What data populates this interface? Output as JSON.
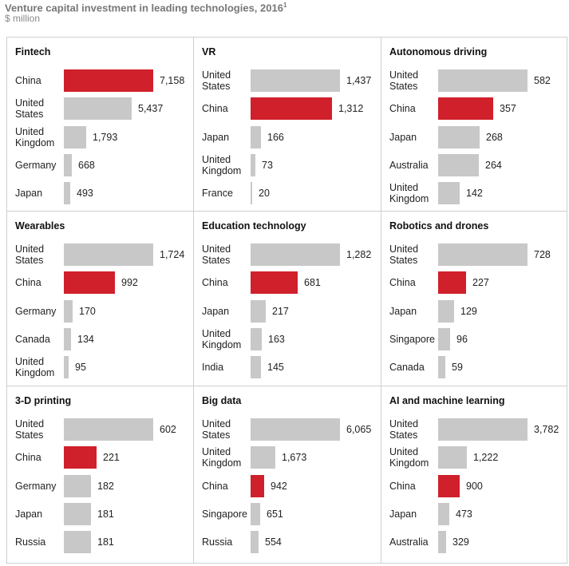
{
  "title": "Venture capital investment in leading technologies, 2016",
  "footnote_mark": "1",
  "unit_label": "$ million",
  "colors": {
    "highlight": "#d0202b",
    "bar": "#c8c8c8"
  },
  "chart_data": [
    {
      "type": "bar",
      "title": "Fintech",
      "max": 7158,
      "categories": [
        "China",
        "United States",
        "United Kingdom",
        "Germany",
        "Japan"
      ],
      "labels": [
        [
          "China"
        ],
        [
          "United",
          "States"
        ],
        [
          "United",
          "Kingdom"
        ],
        [
          "Germany"
        ],
        [
          "Japan"
        ]
      ],
      "values": [
        7158,
        5437,
        1793,
        668,
        493
      ],
      "value_labels": [
        "7,158",
        "5,437",
        "1,793",
        "668",
        "493"
      ]
    },
    {
      "type": "bar",
      "title": "VR",
      "max": 1437,
      "categories": [
        "United States",
        "China",
        "Japan",
        "United Kingdom",
        "France"
      ],
      "labels": [
        [
          "United",
          "States"
        ],
        [
          "China"
        ],
        [
          "Japan"
        ],
        [
          "United",
          "Kingdom"
        ],
        [
          "France"
        ]
      ],
      "values": [
        1437,
        1312,
        166,
        73,
        20
      ],
      "value_labels": [
        "1,437",
        "1,312",
        "166",
        "73",
        "20"
      ]
    },
    {
      "type": "bar",
      "title": "Autonomous driving",
      "max": 582,
      "categories": [
        "United States",
        "China",
        "Japan",
        "Australia",
        "United Kingdom"
      ],
      "labels": [
        [
          "United",
          "States"
        ],
        [
          "China"
        ],
        [
          "Japan"
        ],
        [
          "Australia"
        ],
        [
          "United",
          "Kingdom"
        ]
      ],
      "values": [
        582,
        357,
        268,
        264,
        142
      ],
      "value_labels": [
        "582",
        "357",
        "268",
        "264",
        "142"
      ]
    },
    {
      "type": "bar",
      "title": "Wearables",
      "max": 1724,
      "categories": [
        "United States",
        "China",
        "Germany",
        "Canada",
        "United Kingdom"
      ],
      "labels": [
        [
          "United",
          "States"
        ],
        [
          "China"
        ],
        [
          "Germany"
        ],
        [
          "Canada"
        ],
        [
          "United",
          "Kingdom"
        ]
      ],
      "values": [
        1724,
        992,
        170,
        134,
        95
      ],
      "value_labels": [
        "1,724",
        "992",
        "170",
        "134",
        "95"
      ]
    },
    {
      "type": "bar",
      "title": "Education technology",
      "max": 1282,
      "categories": [
        "United States",
        "China",
        "Japan",
        "United Kingdom",
        "India"
      ],
      "labels": [
        [
          "United",
          "States"
        ],
        [
          "China"
        ],
        [
          "Japan"
        ],
        [
          "United",
          "Kingdom"
        ],
        [
          "India"
        ]
      ],
      "values": [
        1282,
        681,
        217,
        163,
        145
      ],
      "value_labels": [
        "1,282",
        "681",
        "217",
        "163",
        "145"
      ]
    },
    {
      "type": "bar",
      "title": "Robotics and drones",
      "max": 728,
      "categories": [
        "United States",
        "China",
        "Japan",
        "Singapore",
        "Canada"
      ],
      "labels": [
        [
          "United",
          "States"
        ],
        [
          "China"
        ],
        [
          "Japan"
        ],
        [
          "Singapore"
        ],
        [
          "Canada"
        ]
      ],
      "values": [
        728,
        227,
        129,
        96,
        59
      ],
      "value_labels": [
        "728",
        "227",
        "129",
        "96",
        "59"
      ]
    },
    {
      "type": "bar",
      "title": "3-D printing",
      "max": 602,
      "categories": [
        "United States",
        "China",
        "Germany",
        "Japan",
        "Russia"
      ],
      "labels": [
        [
          "United",
          "States"
        ],
        [
          "China"
        ],
        [
          "Germany"
        ],
        [
          "Japan"
        ],
        [
          "Russia"
        ]
      ],
      "values": [
        602,
        221,
        182,
        181,
        181
      ],
      "value_labels": [
        "602",
        "221",
        "182",
        "181",
        "181"
      ]
    },
    {
      "type": "bar",
      "title": "Big data",
      "max": 6065,
      "categories": [
        "United States",
        "United Kingdom",
        "China",
        "Singapore",
        "Russia"
      ],
      "labels": [
        [
          "United",
          "States"
        ],
        [
          "United",
          "Kingdom"
        ],
        [
          "China"
        ],
        [
          "Singapore"
        ],
        [
          "Russia"
        ]
      ],
      "values": [
        6065,
        1673,
        942,
        651,
        554
      ],
      "value_labels": [
        "6,065",
        "1,673",
        "942",
        "651",
        "554"
      ]
    },
    {
      "type": "bar",
      "title": "AI and machine learning",
      "max": 3782,
      "categories": [
        "United States",
        "United Kingdom",
        "China",
        "Japan",
        "Australia"
      ],
      "labels": [
        [
          "United",
          "States"
        ],
        [
          "United",
          "Kingdom"
        ],
        [
          "China"
        ],
        [
          "Japan"
        ],
        [
          "Australia"
        ]
      ],
      "values": [
        3782,
        1222,
        900,
        473,
        329
      ],
      "value_labels": [
        "3,782",
        "1,222",
        "900",
        "473",
        "329"
      ]
    }
  ]
}
